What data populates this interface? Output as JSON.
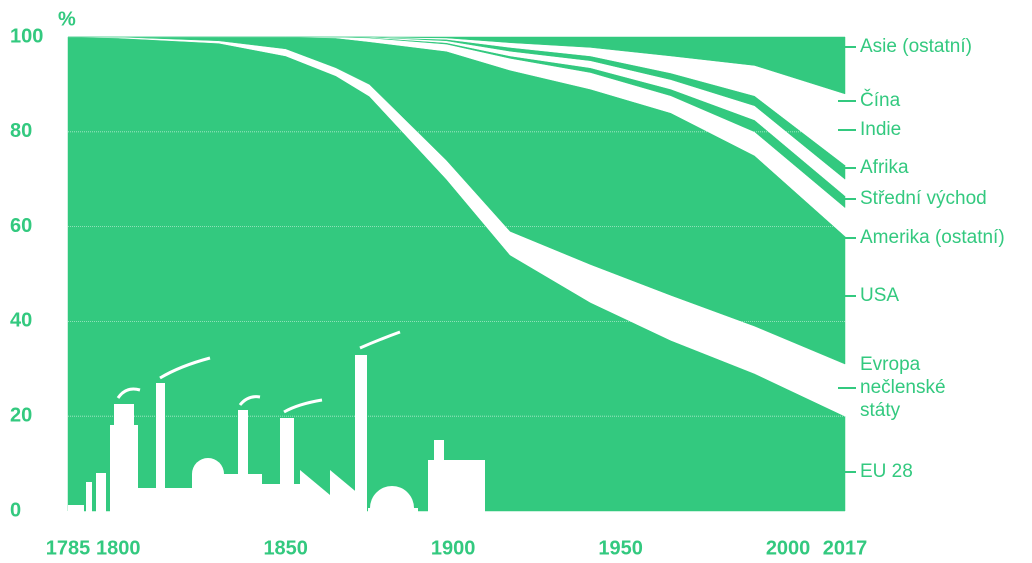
{
  "chart_data": {
    "type": "stacked_area",
    "y_unit_label": "%",
    "x": [
      1785,
      1800,
      1830,
      1850,
      1865,
      1875,
      1898,
      1917,
      1941,
      1965,
      1990,
      2017
    ],
    "xlim": [
      1785,
      2017
    ],
    "xticks": [
      1785,
      1800,
      1850,
      1900,
      1950,
      2000,
      2017
    ],
    "ylim": [
      0,
      100
    ],
    "yticks": [
      0,
      20,
      40,
      60,
      80,
      100
    ],
    "grid": true,
    "series": [
      {
        "name": "EU 28",
        "color": "#33c97f",
        "values": [
          100,
          99.8,
          98.7,
          96,
          91.8,
          87.5,
          70,
          54,
          44,
          36,
          29,
          20
        ]
      },
      {
        "name": "Evropa nečlenské státy",
        "color": "#ffffff",
        "values": [
          0,
          0.2,
          0.5,
          1.5,
          1.7,
          2.5,
          4,
          5,
          8,
          9.5,
          10,
          11
        ]
      },
      {
        "name": "USA",
        "color": "#33c97f",
        "values": [
          0,
          0,
          0.8,
          2.5,
          6.3,
          9,
          23,
          34,
          37,
          38.5,
          36,
          27
        ]
      },
      {
        "name": "Amerika (ostatní)",
        "color": "#ffffff",
        "values": [
          0,
          0,
          0,
          0,
          0.2,
          0.8,
          1.5,
          2.5,
          3.5,
          3.6,
          5,
          6
        ]
      },
      {
        "name": "Střední východ",
        "color": "#33c97f",
        "values": [
          0,
          0,
          0,
          0,
          0,
          0.1,
          0.3,
          0.5,
          1,
          1.4,
          2.5,
          2.5
        ]
      },
      {
        "name": "Afrika",
        "color": "#ffffff",
        "values": [
          0,
          0,
          0,
          0,
          0,
          0.1,
          0.4,
          1,
          1.5,
          2,
          3,
          3.5
        ]
      },
      {
        "name": "Indie",
        "color": "#33c97f",
        "values": [
          0,
          0,
          0,
          0,
          0,
          0,
          0.3,
          0.8,
          1,
          1.4,
          2.1,
          3
        ]
      },
      {
        "name": "Čína",
        "color": "#ffffff",
        "values": [
          0,
          0,
          0,
          0,
          0,
          0,
          0.3,
          1,
          1.8,
          3.6,
          6.4,
          15
        ]
      },
      {
        "name": "Asie (ostatní)",
        "color": "#33c97f",
        "values": [
          0,
          0,
          0,
          0,
          0,
          0,
          0.2,
          1.2,
          2.2,
          4,
          6,
          12
        ]
      }
    ]
  }
}
